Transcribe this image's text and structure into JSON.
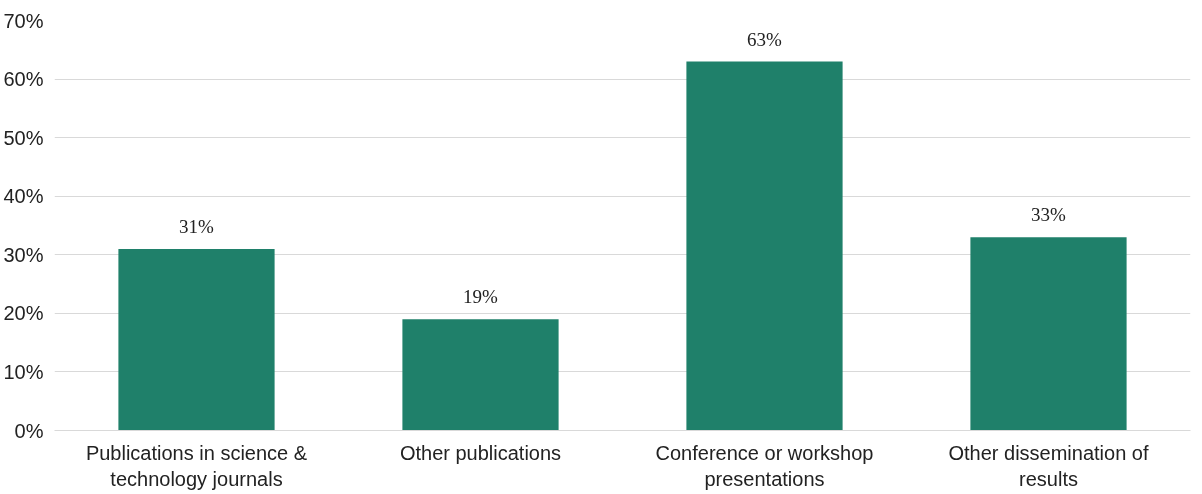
{
  "chart_data": {
    "type": "bar",
    "categories": [
      "Publications in science & technology journals",
      "Other publications",
      "Conference or workshop presentations",
      "Other dissemination of results"
    ],
    "values": [
      31,
      19,
      63,
      33
    ],
    "value_labels": [
      "31%",
      "19%",
      "63%",
      "33%"
    ],
    "color": "#1f806a",
    "ylim": [
      0,
      70
    ],
    "yticks": [
      {
        "value": 0,
        "label": "0%"
      },
      {
        "value": 10,
        "label": "10%"
      },
      {
        "value": 20,
        "label": "20%"
      },
      {
        "value": 30,
        "label": "30%"
      },
      {
        "value": 40,
        "label": "40%"
      },
      {
        "value": 50,
        "label": "50%"
      },
      {
        "value": 60,
        "label": "60%"
      },
      {
        "value": 70,
        "label": "70%"
      }
    ],
    "grid": "y"
  }
}
